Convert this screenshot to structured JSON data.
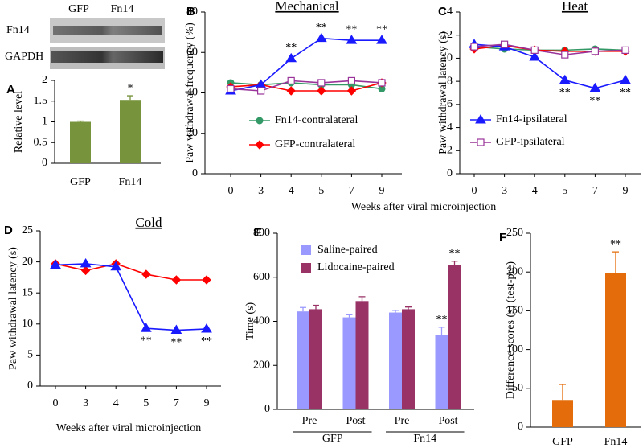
{
  "chart_data": [
    {
      "panel": "A",
      "type": "bar",
      "blot": {
        "columns": [
          "GFP",
          "Fn14"
        ],
        "rows": [
          "Fn14",
          "GAPDH"
        ]
      },
      "ylabel": "Relative level",
      "categories": [
        "GFP",
        "Fn14"
      ],
      "values": [
        1.0,
        1.53
      ],
      "errors": [
        0.02,
        0.1
      ],
      "annotations": [
        null,
        "*"
      ],
      "color": "#77933c",
      "ylim": [
        0,
        2
      ],
      "yticks": [
        0,
        0.5,
        1,
        1.5,
        2
      ]
    },
    {
      "panel": "B",
      "type": "line",
      "title": "Mechanical",
      "xlabel": "Weeks after viral microinjection",
      "ylabel": "Paw withdrawal frequency (%)",
      "categories": [
        "0",
        "3",
        "4",
        "5",
        "7",
        "9"
      ],
      "ylim": [
        0,
        80
      ],
      "yticks": [
        0,
        20,
        40,
        60,
        80
      ],
      "series": [
        {
          "name": "Fn14-contralateral",
          "color": "#339966",
          "marker": "circle",
          "in_legend": true,
          "values": [
            45,
            44,
            45,
            44,
            44,
            42
          ]
        },
        {
          "name": "GFP-contralateral",
          "color": "#ff0000",
          "marker": "diamond",
          "in_legend": true,
          "values": [
            43,
            44,
            41,
            41,
            41,
            45
          ]
        },
        {
          "name": "Fn14-ipsilateral",
          "color": "#1a1aff",
          "marker": "triangle",
          "in_legend": false,
          "values": [
            41,
            44,
            57,
            67,
            66,
            66
          ],
          "annotations": [
            null,
            null,
            "**",
            "**",
            "**",
            "**"
          ]
        },
        {
          "name": "GFP-ipsilateral",
          "color": "#993399",
          "marker": "square-open",
          "in_legend": false,
          "values": [
            42,
            41,
            46,
            45,
            46,
            45
          ]
        }
      ]
    },
    {
      "panel": "C",
      "type": "line",
      "title": "Heat",
      "ylabel": "Paw withdrawal  latency (s)",
      "categories": [
        "0",
        "3",
        "4",
        "5",
        "7",
        "9"
      ],
      "ylim": [
        0,
        14
      ],
      "yticks": [
        0,
        2,
        4,
        6,
        8,
        10,
        12,
        14
      ],
      "series": [
        {
          "name": "Fn14-contralateral",
          "color": "#339966",
          "marker": "circle",
          "in_legend": false,
          "values": [
            11,
            10.8,
            10.7,
            10.7,
            10.8,
            10.7
          ]
        },
        {
          "name": "GFP-contralateral",
          "color": "#ff0000",
          "marker": "diamond",
          "in_legend": false,
          "values": [
            10.8,
            11.1,
            10.7,
            10.6,
            10.6,
            10.6
          ]
        },
        {
          "name": "Fn14-ipsilateral",
          "color": "#1a1aff",
          "marker": "triangle",
          "in_legend": true,
          "values": [
            11.2,
            11,
            10.1,
            8.1,
            7.4,
            8.1
          ],
          "annotations": [
            null,
            null,
            null,
            "**",
            "**",
            "**"
          ]
        },
        {
          "name": "GFP-ipsilateral",
          "color": "#993399",
          "marker": "square-open",
          "in_legend": true,
          "values": [
            11,
            11.2,
            10.7,
            10.3,
            10.6,
            10.7
          ]
        }
      ]
    },
    {
      "panel": "D",
      "type": "line",
      "title": "Cold",
      "xlabel": "Weeks after viral microinjection",
      "ylabel": "Paw withdrawal latency (s)",
      "categories": [
        "0",
        "3",
        "4",
        "5",
        "7",
        "9"
      ],
      "ylim": [
        0,
        25
      ],
      "yticks": [
        0,
        5,
        10,
        15,
        20,
        25
      ],
      "series": [
        {
          "color": "#ff0000",
          "marker": "diamond",
          "values": [
            19.7,
            18.6,
            19.7,
            18,
            17.1,
            17.1
          ]
        },
        {
          "color": "#1a1aff",
          "marker": "triangle",
          "values": [
            19.5,
            19.7,
            19.2,
            9.3,
            9.0,
            9.2
          ],
          "annotations": [
            null,
            null,
            null,
            "**",
            "**",
            "**"
          ]
        }
      ]
    },
    {
      "panel": "E",
      "type": "bar",
      "ylabel": "Time (s)",
      "categories": [
        "Pre",
        "Post",
        "Pre",
        "Post"
      ],
      "groups": [
        "GFP",
        "Fn14"
      ],
      "ylim": [
        0,
        800
      ],
      "yticks": [
        0,
        200,
        400,
        600,
        800
      ],
      "series": [
        {
          "name": "Saline-paired",
          "color": "#9999ff",
          "values": [
            445,
            418,
            440,
            338
          ],
          "errors": [
            18,
            12,
            10,
            35
          ],
          "annotations": [
            null,
            null,
            null,
            "**"
          ]
        },
        {
          "name": "Lidocaine-paired",
          "color": "#993366",
          "values": [
            455,
            492,
            455,
            655
          ],
          "errors": [
            18,
            20,
            10,
            18
          ],
          "annotations": [
            null,
            null,
            null,
            "**"
          ]
        }
      ]
    },
    {
      "panel": "F",
      "type": "bar",
      "ylabel": "Difference scores (s) (test-pre)",
      "categories": [
        "GFP",
        "Fn14"
      ],
      "values": [
        35,
        199
      ],
      "errors": [
        20,
        27
      ],
      "annotations": [
        null,
        "**"
      ],
      "color": "#e46c0a",
      "ylim": [
        0,
        250
      ],
      "yticks": [
        0,
        50,
        100,
        150,
        200,
        250
      ]
    }
  ]
}
